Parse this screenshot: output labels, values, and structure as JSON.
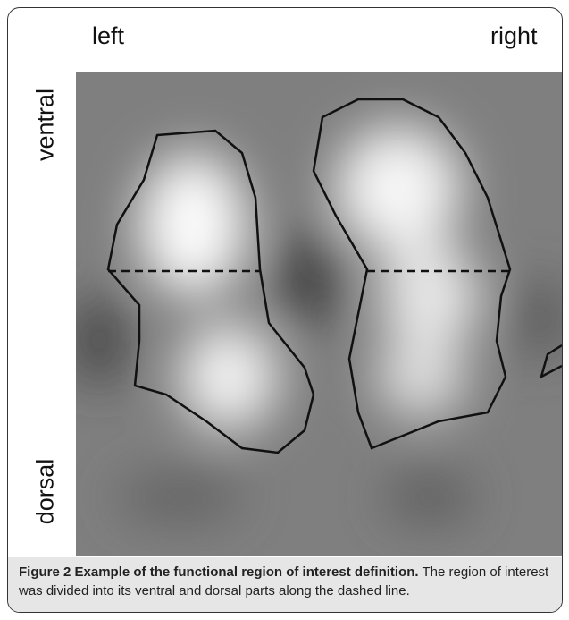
{
  "labels": {
    "left": "left",
    "right": "right",
    "ventral": "ventral",
    "dorsal": "dorsal"
  },
  "caption": {
    "label": "Figure 2",
    "title": "Example of the functional region of interest definition.",
    "text": "The region of interest was divided into its ventral and dorsal parts along the dashed line."
  }
}
